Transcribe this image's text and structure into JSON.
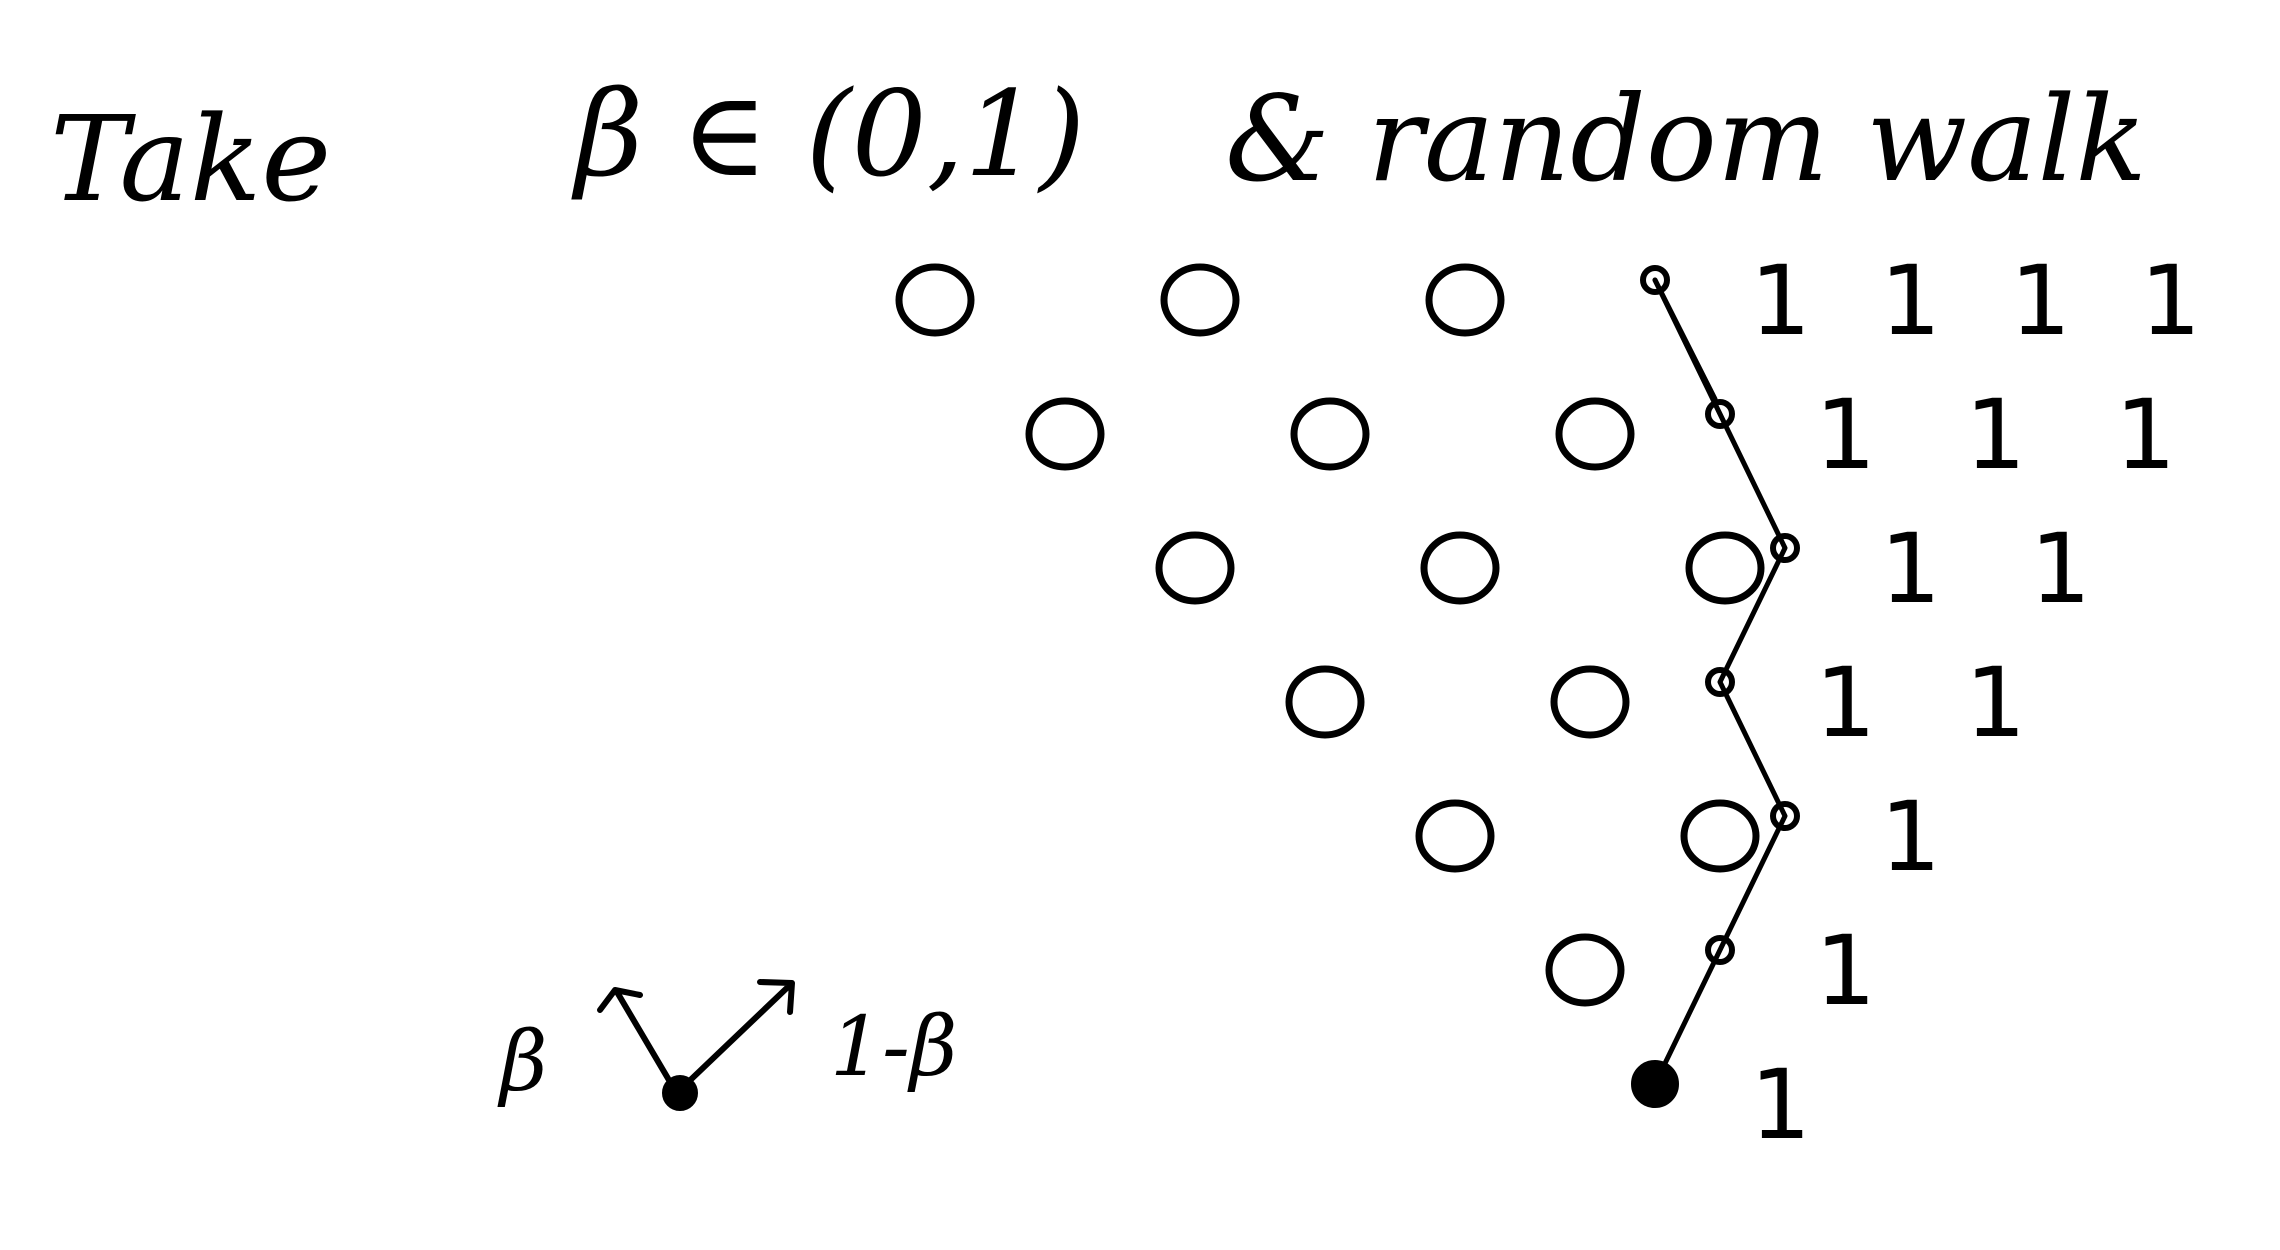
{
  "title": {
    "word_take": "Take",
    "beta_interval": "β ∈ (0,1)",
    "and_random_walk": "& random walk"
  },
  "legend": {
    "up_left_prob": "β",
    "up_right_prob": "1-β"
  },
  "grid": {
    "zero_label": "0",
    "one_label": "1",
    "rows": [
      {
        "zeros": 3,
        "ones": 4
      },
      {
        "zeros": 3,
        "ones": 3
      },
      {
        "zeros": 3,
        "ones": 2
      },
      {
        "zeros": 2,
        "ones": 2
      },
      {
        "zeros": 2,
        "ones": 1
      },
      {
        "zeros": 1,
        "ones": 1
      },
      {
        "zeros": 0,
        "ones": 1
      }
    ]
  },
  "walk": {
    "steps_from_bottom": [
      "up-right",
      "up-right",
      "up-left",
      "up-right",
      "up-left",
      "up-left"
    ]
  },
  "colors": {
    "ink": "#000000",
    "background": "#ffffff"
  }
}
